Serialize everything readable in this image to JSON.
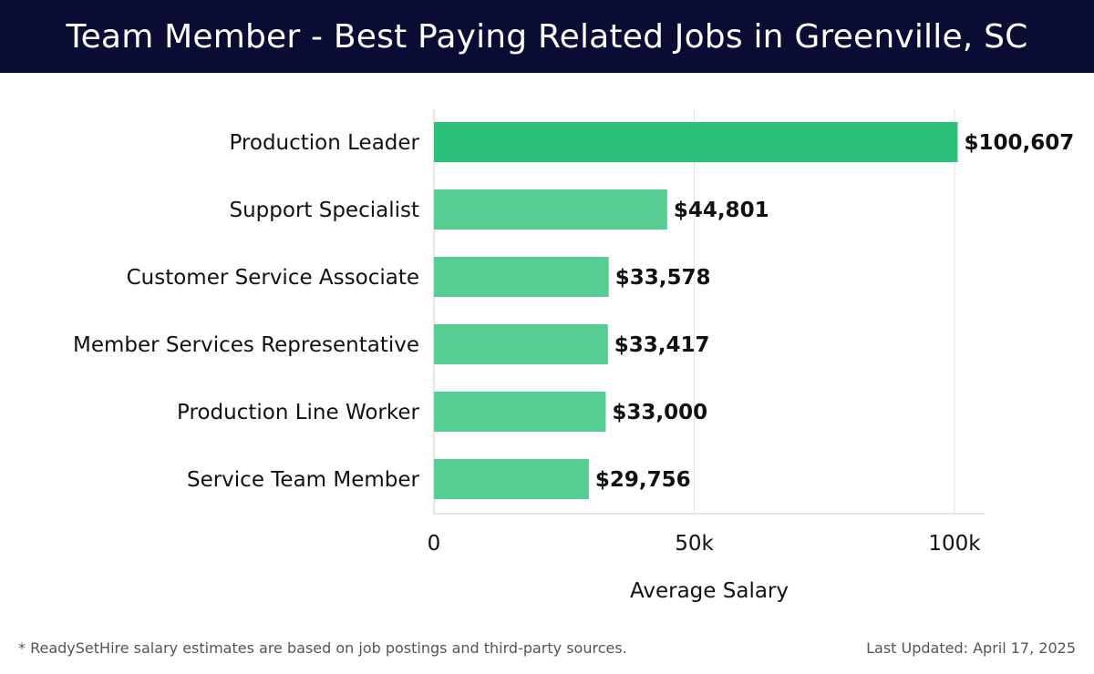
{
  "header": {
    "title": "Team Member - Best Paying Related Jobs in Greenville, SC"
  },
  "chart_data": {
    "type": "bar",
    "orientation": "horizontal",
    "title": "Team Member - Best Paying Related Jobs in Greenville, SC",
    "categories": [
      "Production Leader",
      "Support Specialist",
      "Customer Service Associate",
      "Member Services Representative",
      "Production Line Worker",
      "Service Team Member"
    ],
    "values": [
      100607,
      44801,
      33578,
      33417,
      33000,
      29756
    ],
    "value_labels": [
      "$100,607",
      "$44,801",
      "$33,578",
      "$33,417",
      "$33,000",
      "$29,756"
    ],
    "xlabel": "Average Salary",
    "ylabel": "",
    "xlim": [
      0,
      106000
    ],
    "xticks": [
      0,
      50000,
      100000
    ],
    "xtick_labels": [
      "0",
      "50k",
      "100k"
    ],
    "grid": true,
    "colors": {
      "highlight": "#2cc07a",
      "bar": "#55cd93",
      "grid": "#e3e3e3",
      "axis": "#cccccc"
    }
  },
  "footer": {
    "note": "* ReadySetHire salary estimates are based on job postings and third-party sources.",
    "updated": "Last Updated: April 17, 2025"
  }
}
